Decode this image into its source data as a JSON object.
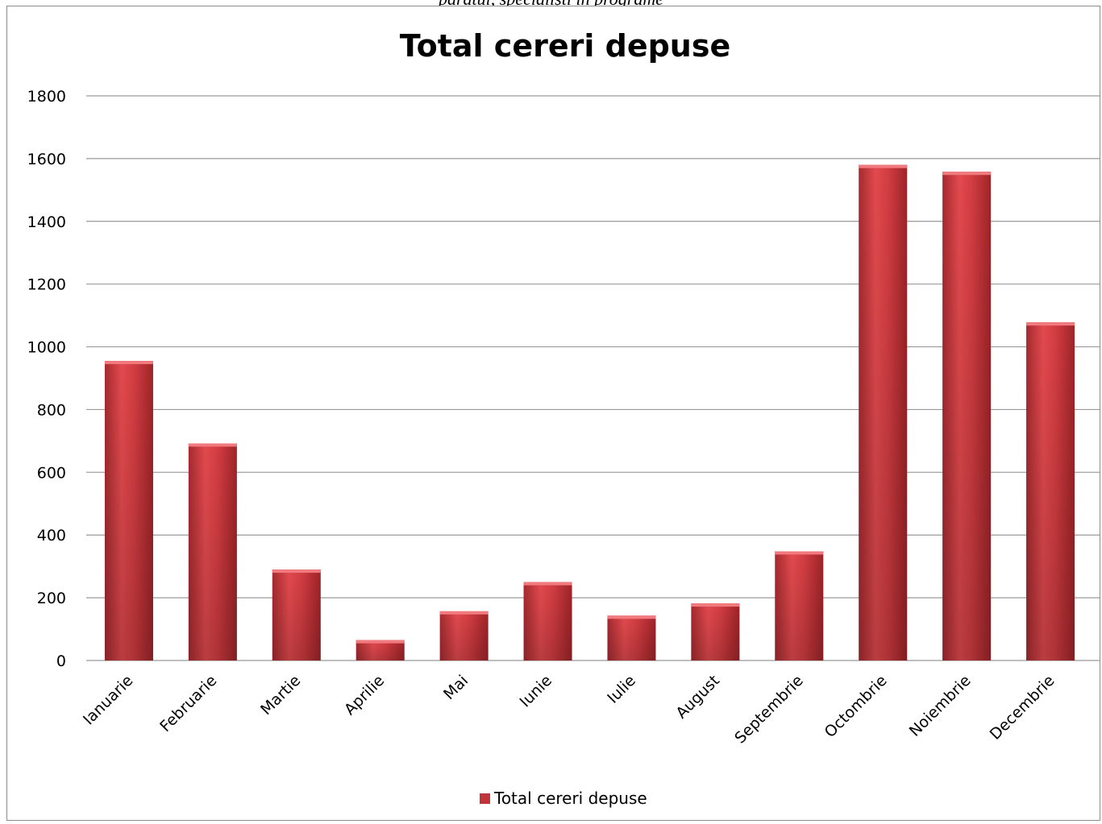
{
  "page": {
    "top_caption": "paratul, specialiști în programe"
  },
  "chart_data": {
    "type": "bar",
    "title": "Total cereri depuse",
    "categories": [
      "Ianuarie",
      "Februarie",
      "Martie",
      "Aprilie",
      "Mai",
      "Iunie",
      "Iulie",
      "August",
      "Septembrie",
      "Octombrie",
      "Noiembrie",
      "Decembrie"
    ],
    "series": [
      {
        "name": "Total cereri depuse",
        "values": [
          955,
          692,
          290,
          65,
          157,
          250,
          143,
          182,
          348,
          1580,
          1558,
          1078
        ],
        "color": "#c0353a"
      }
    ],
    "ylim": [
      0,
      1800
    ],
    "yticks": [
      0,
      200,
      400,
      600,
      800,
      1000,
      1200,
      1400,
      1600,
      1800
    ],
    "grid": true,
    "legend": "bottom"
  }
}
